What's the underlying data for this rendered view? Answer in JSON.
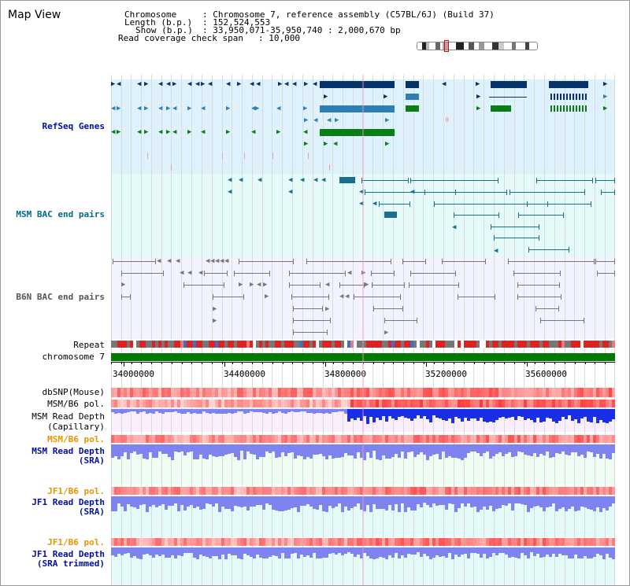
{
  "window_title": "Map View",
  "header": {
    "chromosome_label": "Chromosome",
    "chromosome_value": ": Chromosome 7, reference assembly (C57BL/6J) (Build 37)",
    "length_label": "Length (b.p.)",
    "length_value": ": 152,524,553",
    "show_label": "Show (b.p.)",
    "show_value": ": 33,950,071-35,950,740 : 2,000,670 bp",
    "coverage_label": "Read coverage check span",
    "coverage_value": ": 10,000"
  },
  "tracks": {
    "refseq": "RefSeq Genes",
    "msm_bac": "MSM BAC end pairs",
    "b6n_bac": "B6N BAC end pairs",
    "repeat": "Repeat",
    "chromosome": "chromosome 7",
    "dbsnp": "dbSNP(Mouse)",
    "msm_b6_pol_1": "MSM/B6 pol.",
    "msm_depth_cap_1": "MSM Read Depth",
    "msm_depth_cap_2": "(Capillary)",
    "msm_b6_pol_2": "MSM/B6 pol.",
    "msm_depth_sra_1": "MSM Read Depth",
    "msm_depth_sra_2": "(SRA)",
    "jf1_b6_pol_1": "JF1/B6 pol.",
    "jf1_depth_sra_1": "JF1 Read Depth",
    "jf1_depth_sra_2": "(SRA)",
    "jf1_b6_pol_2": "JF1/B6 pol.",
    "jf1_depth_trim_1": "JF1 Read Depth",
    "jf1_depth_trim_2": "(SRA trimmed)"
  },
  "axis": {
    "ticks": [
      "34000000",
      "34400000",
      "34800000",
      "35200000",
      "35600000"
    ],
    "tick_values": [
      34000000,
      34400000,
      34800000,
      35200000,
      35600000
    ],
    "range": [
      33950071,
      35950740
    ]
  },
  "colors": {
    "refseq_bg": "#dff2fb",
    "bac_bg": "#e7fafa",
    "b6n_bg": "#f3f3ff",
    "depth_bg_pink": "#fbeefb",
    "depth_bg_green": "#eefcf2",
    "chromosome_bar": "#007a00",
    "gene_dark_blue": "#08326a",
    "gene_mid_blue": "#2e7fb3",
    "gene_green": "#0b7d16",
    "bac_teal": "#1a6f8c",
    "b6n_gray": "#777777",
    "depth_blue": "#1a2ee6",
    "depth_light": "#7f83f0",
    "pol_red": "#e02020",
    "track_label_blue": "#00109a",
    "track_label_teal": "#006a8a",
    "track_label_orange": "#e69400"
  }
}
